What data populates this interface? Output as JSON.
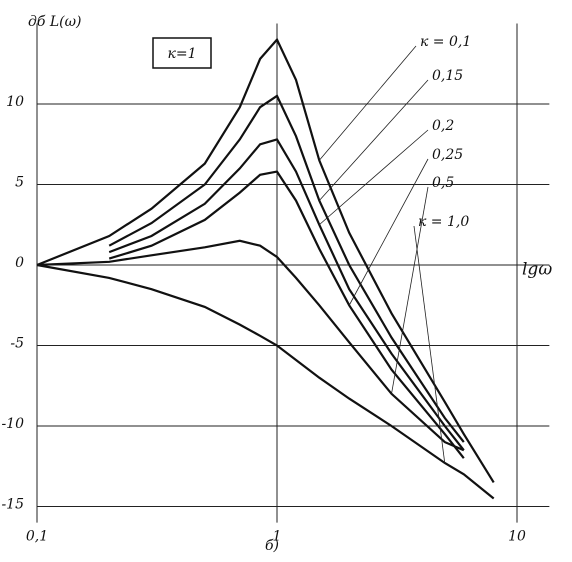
{
  "chart_data": {
    "type": "line",
    "y_label": "дб L(ω)",
    "x_label": "lgω",
    "annotation": "к=1",
    "caption": "б)",
    "x": [
      0.1,
      0.2,
      0.3,
      0.5,
      0.7,
      0.85,
      1,
      1.2,
      1.5,
      2,
      3,
      5,
      6,
      8
    ],
    "series": [
      {
        "name": "к = 0,1",
        "color": "#111111",
        "values": [
          0,
          1.8,
          3.5,
          6.3,
          9.8,
          12.8,
          14,
          11.5,
          6.5,
          2,
          -3,
          -8.5,
          -10.5,
          -13.5
        ]
      },
      {
        "name": "0,15",
        "color": "#111111",
        "values": [
          null,
          1.2,
          2.6,
          5,
          7.8,
          9.8,
          10.5,
          8,
          4,
          0,
          -4.5,
          -9.5,
          -11,
          null
        ]
      },
      {
        "name": "0,2",
        "color": "#111111",
        "values": [
          null,
          0.8,
          1.8,
          3.8,
          6,
          7.5,
          7.8,
          5.8,
          2.5,
          -1.5,
          -5.5,
          -10,
          -11.5,
          null
        ]
      },
      {
        "name": "0,25",
        "color": "#111111",
        "values": [
          null,
          0.4,
          1.2,
          2.8,
          4.5,
          5.6,
          5.8,
          4,
          1,
          -2.5,
          -6.5,
          -10.5,
          -12,
          null
        ]
      },
      {
        "name": "0,5",
        "color": "#111111",
        "values": [
          0,
          0.2,
          0.6,
          1.1,
          1.5,
          1.2,
          0.5,
          -0.8,
          -2.5,
          -4.8,
          -8,
          -11,
          -11.5,
          null
        ]
      },
      {
        "name": "к = 1,0",
        "color": "#111111",
        "values": [
          0,
          -0.8,
          -1.5,
          -2.6,
          -3.7,
          -4.4,
          -5,
          -5.9,
          -7,
          -8.3,
          -10,
          -12.3,
          -13,
          -14.5
        ]
      }
    ],
    "log_x": true,
    "xlim": [
      0.1,
      13
    ],
    "ylim": [
      -16,
      15
    ],
    "xticks": [
      {
        "value": 0.1,
        "label": "0,1"
      },
      1,
      10
    ],
    "yticks": [
      10,
      5,
      0,
      -5,
      -10,
      -15
    ],
    "grid": true
  }
}
